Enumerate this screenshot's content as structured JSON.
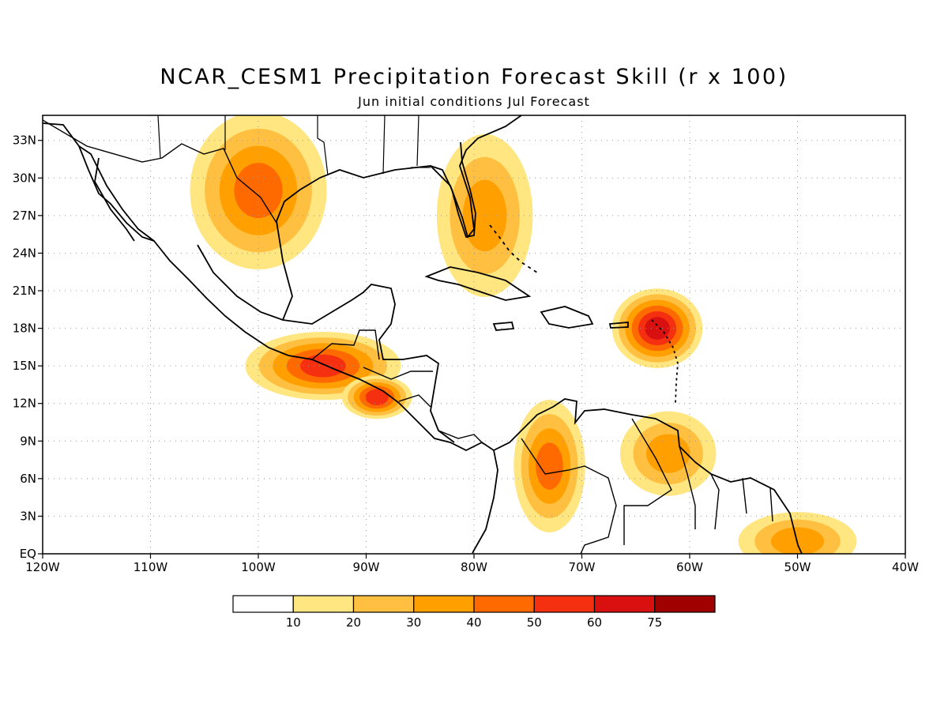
{
  "title": "NCAR_CESM1 Precipitation Forecast Skill (r x 100)",
  "subtitle": "Jun initial conditions  Jul Forecast",
  "map": {
    "region": "Central America, Gulf of Mexico and Caribbean",
    "lon_range": [
      -120,
      -40
    ],
    "lat_range": [
      0,
      35
    ],
    "gridlines": "dotted",
    "lon_labels": [
      {
        "lon": -120,
        "text": "120W"
      },
      {
        "lon": -110,
        "text": "110W"
      },
      {
        "lon": -100,
        "text": "100W"
      },
      {
        "lon": -90,
        "text": "90W"
      },
      {
        "lon": -80,
        "text": "80W"
      },
      {
        "lon": -70,
        "text": "70W"
      },
      {
        "lon": -60,
        "text": "60W"
      },
      {
        "lon": -50,
        "text": "50W"
      },
      {
        "lon": -40,
        "text": "40W"
      }
    ],
    "lat_labels": [
      {
        "lat": 0,
        "text": "EQ"
      },
      {
        "lat": 3,
        "text": "3N"
      },
      {
        "lat": 6,
        "text": "6N"
      },
      {
        "lat": 9,
        "text": "9N"
      },
      {
        "lat": 12,
        "text": "12N"
      },
      {
        "lat": 15,
        "text": "15N"
      },
      {
        "lat": 18,
        "text": "18N"
      },
      {
        "lat": 21,
        "text": "21N"
      },
      {
        "lat": 24,
        "text": "24N"
      },
      {
        "lat": 27,
        "text": "27N"
      },
      {
        "lat": 30,
        "text": "30N"
      },
      {
        "lat": 33,
        "text": "33N"
      }
    ],
    "skill_levels": [
      {
        "min": 10,
        "color": "#ffe680"
      },
      {
        "min": 20,
        "color": "#ffbf40"
      },
      {
        "min": 30,
        "color": "#ff9f00"
      },
      {
        "min": 40,
        "color": "#ff6a00"
      },
      {
        "min": 50,
        "color": "#f53010"
      },
      {
        "min": 60,
        "color": "#d81010"
      },
      {
        "min": 75,
        "color": "#a00000"
      }
    ],
    "skill_areas": [
      {
        "lon": -100,
        "lat": 29,
        "rx": 6,
        "ry": 6,
        "value": 40
      },
      {
        "lon": -94,
        "lat": 15,
        "rx": 7,
        "ry": 2.5,
        "value": 55
      },
      {
        "lon": -89,
        "lat": 12.5,
        "rx": 3,
        "ry": 1.5,
        "value": 50
      },
      {
        "lon": -63,
        "lat": 18,
        "rx": 4,
        "ry": 3,
        "value": 60
      },
      {
        "lon": -73,
        "lat": 7,
        "rx": 3,
        "ry": 5,
        "value": 45
      },
      {
        "lon": -79,
        "lat": 27,
        "rx": 4,
        "ry": 6,
        "value": 30
      },
      {
        "lon": -62,
        "lat": 8,
        "rx": 4,
        "ry": 3,
        "value": 30
      },
      {
        "lon": -50,
        "lat": 1,
        "rx": 5,
        "ry": 2,
        "value": 30
      }
    ]
  },
  "colorbar": {
    "colors": [
      "#ffffff",
      "#ffe680",
      "#ffbf40",
      "#ff9f00",
      "#ff6a00",
      "#f53010",
      "#d81010",
      "#a00000"
    ],
    "labels": [
      "10",
      "20",
      "30",
      "40",
      "50",
      "60",
      "75"
    ]
  }
}
